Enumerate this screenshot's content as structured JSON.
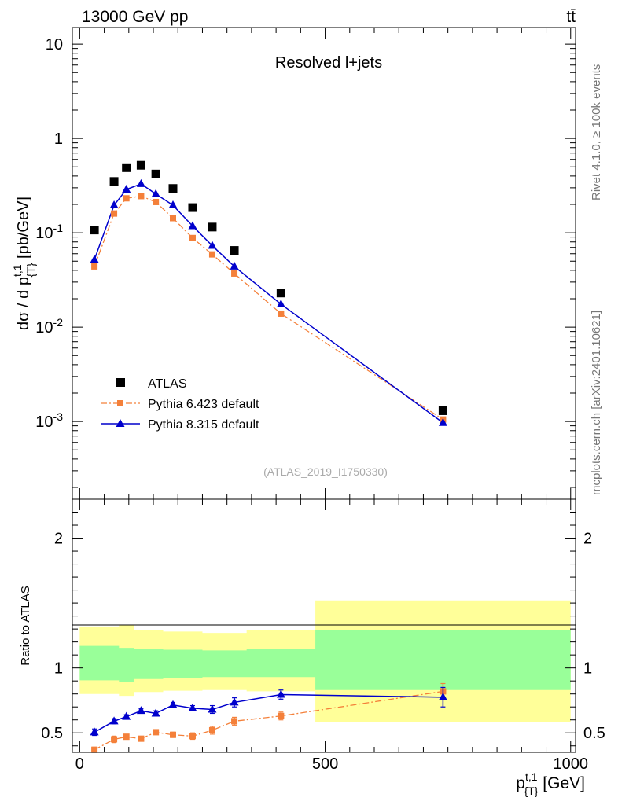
{
  "header": {
    "energy_label": "13000 GeV pp",
    "process_label": "tt̄"
  },
  "side_labels": {
    "rivet": "Rivet 4.1.0, ≥ 100k events",
    "source": "mcplots.cern.ch [arXiv:2401.10621]"
  },
  "analysis_tag": "(ATLAS_2019_I1750330)",
  "colors": {
    "data": "#000000",
    "pythia6": "#f4803a",
    "pythia8": "#0000cc",
    "band_inner": "#99ff99",
    "band_outer": "#ffff99"
  },
  "chart_data": [
    {
      "type": "scatter",
      "title": "Resolved l+jets",
      "xlabel": "p_{T}^{t,1} [GeV]",
      "ylabel": "dσ / d p_{T}^{t,1} [pb/GeV]",
      "yscale": "log",
      "xlim": [
        -15,
        1010
      ],
      "ylim": [
        0.00015,
        15
      ],
      "y_tick_labels": [
        "10^{-3}",
        "10^{-2}",
        "10^{-1}",
        "1",
        "10"
      ],
      "legend_position": "bottom-left",
      "legend": [
        "ATLAS",
        "Pythia 6.423 default",
        "Pythia 8.315 default"
      ],
      "x": [
        30,
        70,
        95,
        125,
        155,
        190,
        230,
        270,
        315,
        410,
        740
      ],
      "series": [
        {
          "name": "ATLAS",
          "marker": "square",
          "values": [
            0.107,
            0.35,
            0.49,
            0.52,
            0.42,
            0.295,
            0.185,
            0.115,
            0.065,
            0.023,
            0.0013
          ]
        },
        {
          "name": "Pythia 6.423 default",
          "marker": "square",
          "line": "dash-dot",
          "values": [
            0.044,
            0.16,
            0.232,
            0.245,
            0.212,
            0.143,
            0.088,
            0.059,
            0.037,
            0.0139,
            0.00105
          ]
        },
        {
          "name": "Pythia 8.315 default",
          "marker": "triangle",
          "line": "solid",
          "values": [
            0.052,
            0.196,
            0.288,
            0.33,
            0.258,
            0.196,
            0.118,
            0.073,
            0.044,
            0.0175,
            0.00097
          ]
        }
      ]
    },
    {
      "type": "scatter",
      "ylabel": "Ratio to ATLAS",
      "xlabel": "p_{T}^{t,1} [GeV]",
      "xlim": [
        -15,
        1010
      ],
      "ylim": [
        0.35,
        2.3
      ],
      "x_ticks": [
        0,
        500,
        1000
      ],
      "y_ticks": [
        0.5,
        1,
        2
      ],
      "x": [
        30,
        70,
        95,
        125,
        155,
        190,
        230,
        270,
        315,
        410,
        740
      ],
      "bands": {
        "bin_edges": [
          0,
          80,
          110,
          170,
          250,
          340,
          480,
          1000
        ],
        "inner_low": [
          0.905,
          0.895,
          0.915,
          0.925,
          0.93,
          0.93,
          0.83
        ],
        "inner_high": [
          1.17,
          1.155,
          1.145,
          1.14,
          1.135,
          1.145,
          1.29
        ],
        "outer_low": [
          0.8,
          0.785,
          0.815,
          0.825,
          0.83,
          0.82,
          0.585
        ],
        "outer_high": [
          1.32,
          1.33,
          1.29,
          1.28,
          1.27,
          1.29,
          1.52
        ]
      },
      "series": [
        {
          "name": "Pythia 6.423 default",
          "values": [
            0.37,
            0.45,
            0.47,
            0.455,
            0.505,
            0.485,
            0.475,
            0.52,
            0.59,
            0.63,
            0.82
          ],
          "errors": [
            0.02,
            0.025,
            0.015,
            0.015,
            0.015,
            0.02,
            0.025,
            0.03,
            0.03,
            0.03,
            0.06
          ]
        },
        {
          "name": "Pythia 8.315 default",
          "values": [
            0.505,
            0.59,
            0.625,
            0.67,
            0.65,
            0.715,
            0.69,
            0.68,
            0.735,
            0.795,
            0.775
          ],
          "errors": [
            0.025,
            0.02,
            0.015,
            0.015,
            0.02,
            0.02,
            0.02,
            0.03,
            0.035,
            0.035,
            0.075
          ]
        }
      ]
    }
  ]
}
